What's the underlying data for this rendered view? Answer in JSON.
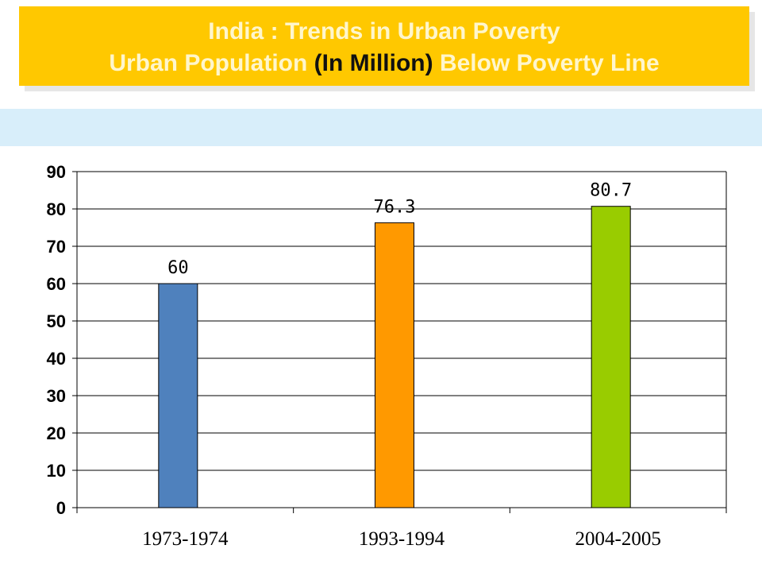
{
  "header": {
    "title_line1": "India : Trends in Urban Poverty",
    "title_line2_pre": "Urban Population ",
    "title_line2_emph": "(In Million)",
    "title_line2_post": " Below Poverty Line"
  },
  "colors": {
    "header_bg": "#ffc800",
    "band_bg": "#d8eefa"
  },
  "chart_data": {
    "type": "bar",
    "categories": [
      "1973-1974",
      "1993-1994",
      "2004-2005"
    ],
    "values": [
      60,
      76.3,
      80.7
    ],
    "data_labels": [
      "60",
      "76.3",
      "80.7"
    ],
    "bar_colors": [
      "#4f81bd",
      "#ff9900",
      "#99cc00"
    ],
    "ylim": [
      0,
      90
    ],
    "yticks": [
      0,
      10,
      20,
      30,
      40,
      50,
      60,
      70,
      80,
      90
    ],
    "grid": true,
    "title": "",
    "xlabel": "",
    "ylabel": ""
  }
}
